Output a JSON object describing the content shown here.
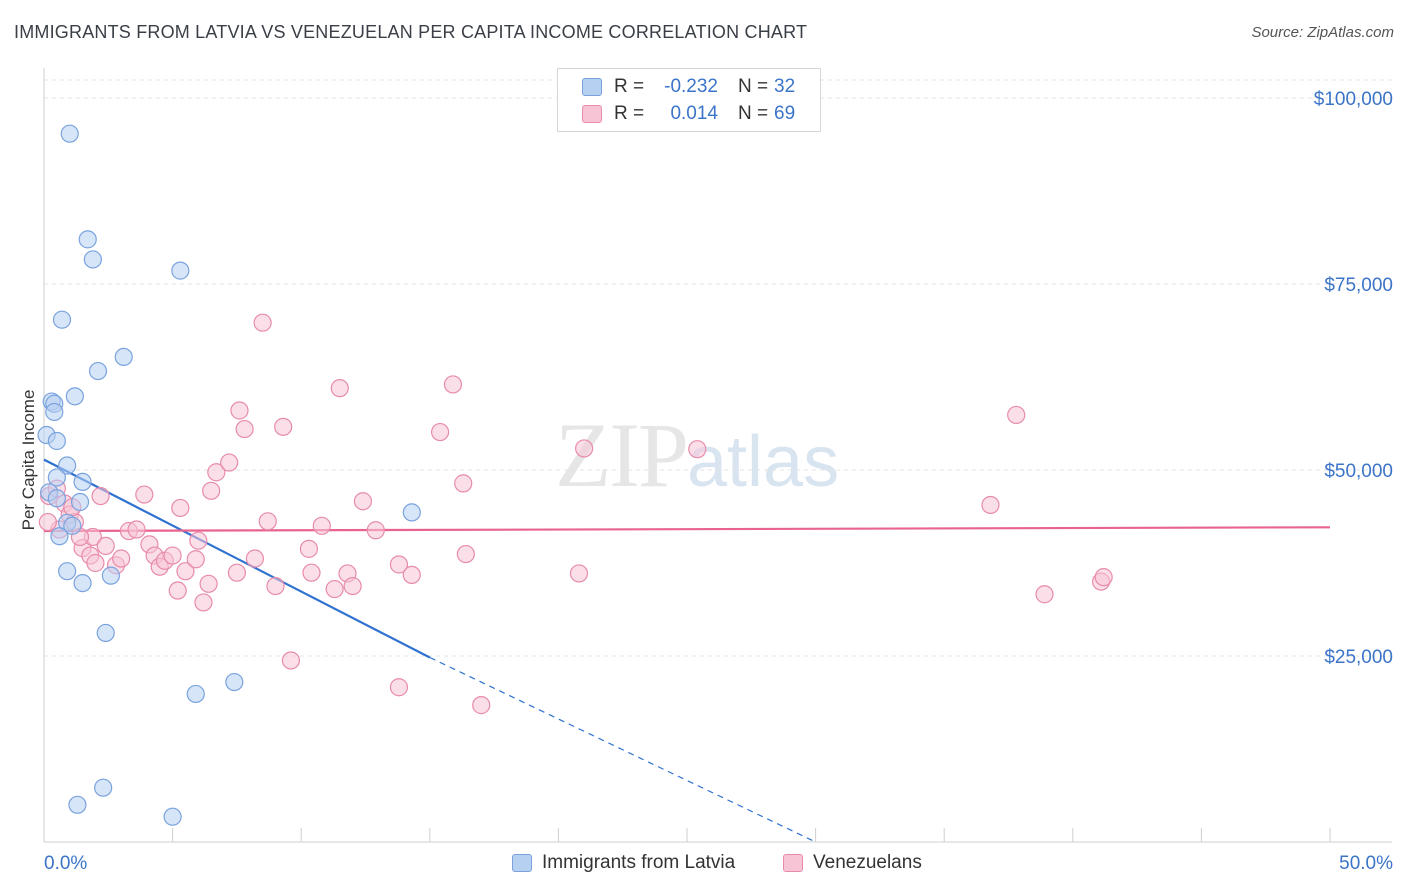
{
  "title": "IMMIGRANTS FROM LATVIA VS VENEZUELAN PER CAPITA INCOME CORRELATION CHART",
  "source": "Source: ZipAtlas.com",
  "watermark": {
    "zip": "ZIP",
    "atlas": "atlas"
  },
  "legend": {
    "rows": [
      {
        "r_label": "R =",
        "r_value": "-0.232",
        "n_label": "N =",
        "n_value": "32"
      },
      {
        "r_label": "R =",
        "r_value": "0.014",
        "n_label": "N =",
        "n_value": "69"
      }
    ]
  },
  "bottom_legend": {
    "latvia": "Immigrants from Latvia",
    "venezuelans": "Venezuelans"
  },
  "colors": {
    "latvia_fill": "#b6d0f2",
    "latvia_stroke": "#7aa3de",
    "latvia_line": "#2f72d0",
    "venez_fill": "#f7c4d5",
    "venez_stroke": "#e88bab",
    "venez_line": "#e8648f"
  },
  "chart_data": {
    "type": "scatter",
    "ylabel": "Per Capita Income",
    "xlim": [
      0,
      50
    ],
    "ylim": [
      0,
      100000
    ],
    "x_tick_labels": [
      "0.0%",
      "50.0%"
    ],
    "y_ticks": [
      {
        "value": 100000,
        "label": "$100,000"
      },
      {
        "value": 75000,
        "label": "$75,000"
      },
      {
        "value": 50000,
        "label": "$50,000"
      },
      {
        "value": 25000,
        "label": "$25,000"
      }
    ],
    "grid": true,
    "series": [
      {
        "name": "Immigrants from Latvia",
        "points": [
          [
            1.0,
            95200
          ],
          [
            1.7,
            81000
          ],
          [
            1.9,
            78300
          ],
          [
            5.3,
            76800
          ],
          [
            0.7,
            70200
          ],
          [
            3.1,
            65200
          ],
          [
            2.1,
            63300
          ],
          [
            1.2,
            59900
          ],
          [
            0.3,
            59200
          ],
          [
            0.4,
            58900
          ],
          [
            0.4,
            57800
          ],
          [
            0.1,
            54700
          ],
          [
            0.5,
            53900
          ],
          [
            0.9,
            50600
          ],
          [
            0.5,
            49000
          ],
          [
            1.5,
            48400
          ],
          [
            0.2,
            47000
          ],
          [
            0.5,
            46200
          ],
          [
            1.4,
            45700
          ],
          [
            14.3,
            44300
          ],
          [
            0.9,
            42900
          ],
          [
            1.1,
            42500
          ],
          [
            0.6,
            41100
          ],
          [
            0.9,
            36400
          ],
          [
            1.5,
            34800
          ],
          [
            2.6,
            35800
          ],
          [
            2.4,
            28100
          ],
          [
            5.9,
            19900
          ],
          [
            7.4,
            21500
          ],
          [
            2.3,
            7300
          ],
          [
            1.3,
            5000
          ],
          [
            5.0,
            3400
          ]
        ],
        "trend": {
          "x0": 0,
          "y0": 51400,
          "x1": 15,
          "y1": 24800,
          "dash_to_x": 30,
          "dash_to_y": 0
        }
      },
      {
        "name": "Venezuelans",
        "points": [
          [
            0.2,
            46500
          ],
          [
            0.5,
            47500
          ],
          [
            0.8,
            45500
          ],
          [
            1.0,
            44000
          ],
          [
            1.2,
            43000
          ],
          [
            0.6,
            42000
          ],
          [
            1.1,
            45000
          ],
          [
            2.2,
            46500
          ],
          [
            1.5,
            39500
          ],
          [
            1.8,
            38500
          ],
          [
            1.9,
            41000
          ],
          [
            2.0,
            37500
          ],
          [
            2.4,
            39800
          ],
          [
            2.8,
            37200
          ],
          [
            3.0,
            38100
          ],
          [
            3.3,
            41800
          ],
          [
            3.6,
            42000
          ],
          [
            3.9,
            46700
          ],
          [
            4.1,
            40000
          ],
          [
            4.3,
            38500
          ],
          [
            4.5,
            37000
          ],
          [
            4.7,
            37800
          ],
          [
            5.0,
            38500
          ],
          [
            5.3,
            44900
          ],
          [
            5.5,
            36400
          ],
          [
            5.2,
            33800
          ],
          [
            5.9,
            38000
          ],
          [
            6.0,
            40500
          ],
          [
            6.2,
            32200
          ],
          [
            6.4,
            34700
          ],
          [
            6.5,
            47200
          ],
          [
            6.7,
            49700
          ],
          [
            7.2,
            51000
          ],
          [
            7.6,
            58000
          ],
          [
            7.8,
            55500
          ],
          [
            7.5,
            36200
          ],
          [
            8.2,
            38100
          ],
          [
            8.7,
            43100
          ],
          [
            9.0,
            34400
          ],
          [
            8.5,
            69800
          ],
          [
            9.3,
            55800
          ],
          [
            9.6,
            24400
          ],
          [
            10.3,
            39400
          ],
          [
            10.4,
            36200
          ],
          [
            10.8,
            42500
          ],
          [
            11.3,
            34000
          ],
          [
            11.8,
            36100
          ],
          [
            12.0,
            34400
          ],
          [
            11.5,
            61000
          ],
          [
            12.4,
            45800
          ],
          [
            12.9,
            41900
          ],
          [
            13.8,
            37300
          ],
          [
            14.3,
            35900
          ],
          [
            13.8,
            20800
          ],
          [
            15.4,
            55100
          ],
          [
            15.9,
            61500
          ],
          [
            16.3,
            48200
          ],
          [
            16.4,
            38700
          ],
          [
            17.0,
            18400
          ],
          [
            20.8,
            36100
          ],
          [
            21.0,
            52900
          ],
          [
            25.4,
            52800
          ],
          [
            36.8,
            45300
          ],
          [
            37.8,
            57400
          ],
          [
            38.9,
            33300
          ],
          [
            41.1,
            35000
          ],
          [
            41.2,
            35600
          ],
          [
            0.15,
            43000
          ],
          [
            1.4,
            41000
          ]
        ],
        "trend": {
          "x0": 0,
          "y0": 41800,
          "x1": 50,
          "y1": 42300
        }
      }
    ]
  }
}
